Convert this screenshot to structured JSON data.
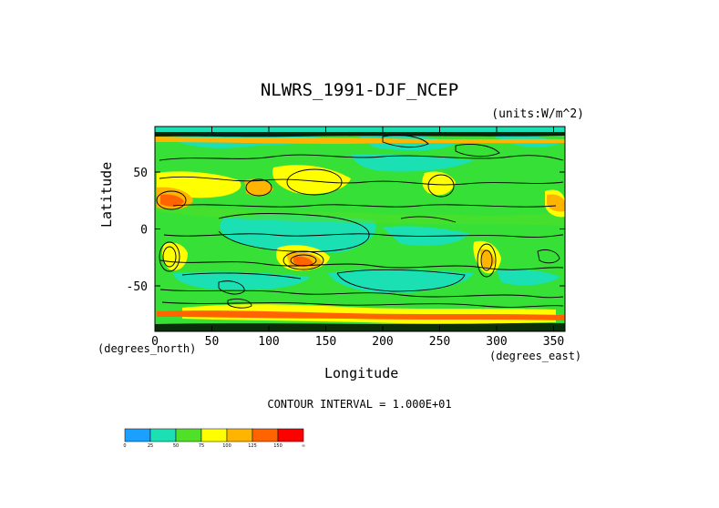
{
  "title": "NLWRS_1991-DJF_NCEP",
  "units": "(units:W/m^2)",
  "ylabel": "Latitude",
  "xlabel": "Longitude",
  "xunits_left": "(degrees_north)",
  "xunits_right": "(degrees_east)",
  "contour_interval": "CONTOUR INTERVAL = 1.000E+01",
  "map": {
    "lon_range": [
      0,
      360
    ],
    "lat_range": [
      -90,
      90
    ],
    "x_ticks": [
      "0",
      "50",
      "100",
      "150",
      "200",
      "250",
      "300",
      "350"
    ],
    "x_tick_values": [
      0,
      50,
      100,
      150,
      200,
      250,
      300,
      350
    ],
    "y_ticks": [
      "50",
      "0",
      "-50"
    ],
    "y_tick_values": [
      50,
      0,
      -50
    ],
    "background_color": "#36e036"
  },
  "colorbar": {
    "labels": [
      "0",
      "25",
      "50",
      "75",
      "100",
      "125",
      "150",
      "∞"
    ],
    "colors": [
      "#1aa0ff",
      "#1ae0b4",
      "#50e028",
      "#ffff00",
      "#ffb400",
      "#ff6400",
      "#ff0000"
    ]
  }
}
